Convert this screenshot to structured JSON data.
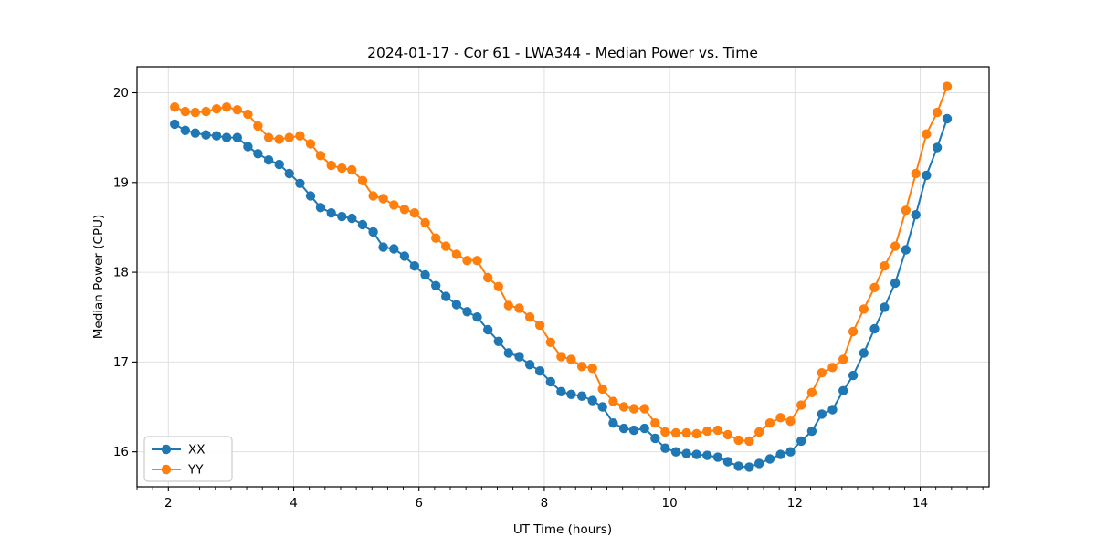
{
  "figure": {
    "background": "#ffffff",
    "grid_color": "#e0e0e0",
    "spine_color": "#000000"
  },
  "chart_data": {
    "type": "line",
    "title": "2024-01-17 - Cor 61 - LWA344 - Median Power vs. Time",
    "xlabel": "UT Time (hours)",
    "ylabel": "Median Power (CPU)",
    "xlim": [
      1.5,
      15.1
    ],
    "ylim": [
      15.61,
      20.29
    ],
    "x_major_ticks": [
      2,
      4,
      6,
      8,
      10,
      12,
      14
    ],
    "x_minor_tick_step": 0.25,
    "y_major_ticks": [
      16,
      17,
      18,
      19,
      20
    ],
    "grid": true,
    "legend_position": "lower left",
    "x": [
      2.1,
      2.27,
      2.43,
      2.6,
      2.77,
      2.93,
      3.1,
      3.27,
      3.43,
      3.6,
      3.77,
      3.93,
      4.1,
      4.27,
      4.43,
      4.6,
      4.77,
      4.93,
      5.1,
      5.27,
      5.43,
      5.6,
      5.77,
      5.93,
      6.1,
      6.27,
      6.43,
      6.6,
      6.77,
      6.93,
      7.1,
      7.27,
      7.43,
      7.6,
      7.77,
      7.93,
      8.1,
      8.27,
      8.43,
      8.6,
      8.77,
      8.93,
      9.1,
      9.27,
      9.43,
      9.6,
      9.77,
      9.93,
      10.1,
      10.27,
      10.43,
      10.6,
      10.77,
      10.93,
      11.1,
      11.27,
      11.43,
      11.6,
      11.77,
      11.93,
      12.1,
      12.27,
      12.43,
      12.6,
      12.77,
      12.93,
      13.1,
      13.27,
      13.43,
      13.6,
      13.77,
      13.93,
      14.1,
      14.27,
      14.43
    ],
    "series": [
      {
        "name": "XX",
        "color": "#1f77b4",
        "values": [
          19.65,
          19.58,
          19.55,
          19.53,
          19.52,
          19.5,
          19.5,
          19.4,
          19.32,
          19.25,
          19.2,
          19.1,
          18.99,
          18.85,
          18.72,
          18.66,
          18.62,
          18.6,
          18.53,
          18.45,
          18.28,
          18.26,
          18.18,
          18.07,
          17.97,
          17.85,
          17.73,
          17.64,
          17.56,
          17.5,
          17.36,
          17.23,
          17.1,
          17.06,
          16.97,
          16.9,
          16.78,
          16.67,
          16.64,
          16.62,
          16.57,
          16.5,
          16.32,
          16.26,
          16.24,
          16.26,
          16.15,
          16.04,
          16.0,
          15.98,
          15.97,
          15.96,
          15.94,
          15.89,
          15.84,
          15.83,
          15.87,
          15.92,
          15.97,
          16.0,
          16.12,
          16.23,
          16.42,
          16.47,
          16.68,
          16.85,
          17.1,
          17.37,
          17.61,
          17.88,
          18.25,
          18.64,
          19.08,
          19.39,
          19.71
        ]
      },
      {
        "name": "YY",
        "color": "#ff7f0e",
        "values": [
          19.84,
          19.79,
          19.78,
          19.79,
          19.82,
          19.84,
          19.81,
          19.76,
          19.63,
          19.5,
          19.48,
          19.5,
          19.52,
          19.43,
          19.3,
          19.19,
          19.16,
          19.14,
          19.02,
          18.85,
          18.82,
          18.75,
          18.7,
          18.66,
          18.55,
          18.38,
          18.29,
          18.2,
          18.13,
          18.13,
          17.94,
          17.84,
          17.63,
          17.6,
          17.5,
          17.41,
          17.22,
          17.06,
          17.03,
          16.95,
          16.93,
          16.7,
          16.56,
          16.5,
          16.48,
          16.48,
          16.32,
          16.22,
          16.21,
          16.21,
          16.2,
          16.23,
          16.24,
          16.19,
          16.13,
          16.12,
          16.22,
          16.32,
          16.38,
          16.34,
          16.52,
          16.66,
          16.88,
          16.94,
          17.03,
          17.34,
          17.59,
          17.83,
          18.07,
          18.29,
          18.69,
          19.1,
          19.54,
          19.78,
          20.07
        ]
      }
    ]
  }
}
